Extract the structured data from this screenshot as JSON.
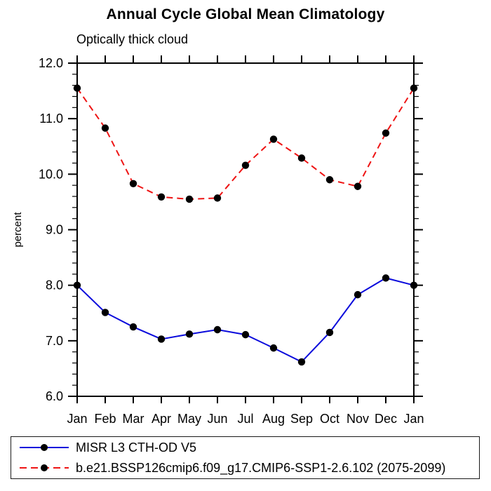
{
  "chart_data": {
    "type": "line",
    "title": "Annual Cycle Global Mean Climatology",
    "subtitle": "Optically thick cloud",
    "ylabel": "percent",
    "xlabel": "",
    "categories": [
      "Jan",
      "Feb",
      "Mar",
      "Apr",
      "May",
      "Jun",
      "Jul",
      "Aug",
      "Sep",
      "Oct",
      "Nov",
      "Dec",
      "Jan"
    ],
    "ylim": [
      6.0,
      12.0
    ],
    "y_major_ticks": [
      12.0,
      11.0,
      10.0,
      9.0,
      8.0,
      7.0,
      6.0
    ],
    "y_major_labels": [
      "12.0",
      "11.0",
      "10.0",
      "9.0",
      "8.0",
      "7.0",
      "6.0"
    ],
    "y_minor_step": 0.2,
    "grid": false,
    "legend_position": "bottom",
    "axis_color": "#000000",
    "series": [
      {
        "id": "misr",
        "name": "MISR L3 CTH-OD V5",
        "color": "#0b0bdc",
        "line_style": "solid",
        "marker": "filled-circle",
        "marker_color": "#000000",
        "values": [
          8.0,
          7.51,
          7.25,
          7.03,
          7.12,
          7.2,
          7.11,
          6.87,
          6.62,
          7.15,
          7.83,
          8.13,
          8.0
        ]
      },
      {
        "id": "model",
        "name": "b.e21.BSSP126cmip6.f09_g17.CMIP6-SSP1-2.6.102 (2075-2099)",
        "color": "#ee1414",
        "line_style": "dashed",
        "marker": "filled-circle",
        "marker_color": "#000000",
        "values": [
          11.55,
          10.83,
          9.83,
          9.59,
          9.55,
          9.57,
          10.16,
          10.63,
          10.29,
          9.9,
          9.78,
          10.74,
          11.55
        ]
      }
    ]
  }
}
